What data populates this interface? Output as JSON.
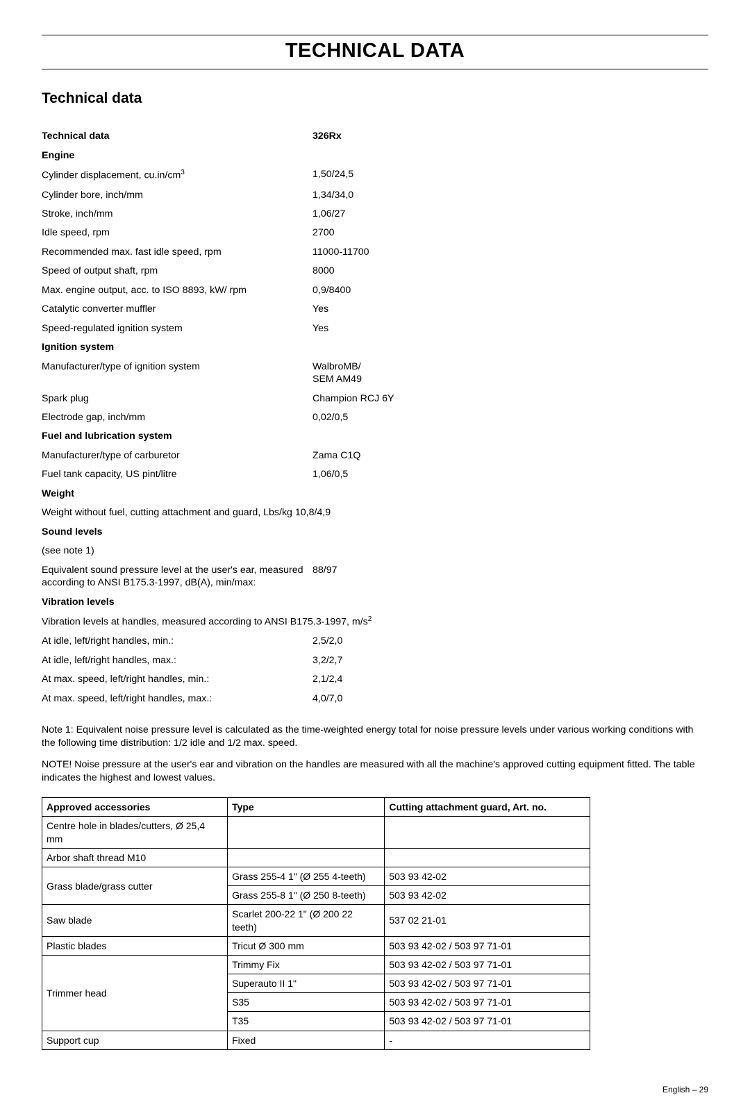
{
  "mainTitle": "TECHNICAL DATA",
  "subTitle": "Technical data",
  "modelHeader": "326Rx",
  "techDataLabel": "Technical data",
  "sections": {
    "engine": {
      "title": "Engine",
      "rows": [
        {
          "key": "cyl_disp",
          "label": "Cylinder displacement, cu.in/cm",
          "sup": "3",
          "value": "1,50/24,5"
        },
        {
          "key": "cyl_bore",
          "label": "Cylinder bore, inch/mm",
          "value": "1,34/34,0"
        },
        {
          "key": "stroke",
          "label": "Stroke, inch/mm",
          "value": "1,06/27"
        },
        {
          "key": "idle",
          "label": "Idle speed, rpm",
          "value": "2700"
        },
        {
          "key": "max_idle",
          "label": "Recommended max. fast idle speed, rpm",
          "value": "11000-11700"
        },
        {
          "key": "output_shaft",
          "label": "Speed of output shaft, rpm",
          "value": "8000"
        },
        {
          "key": "max_engine",
          "label": "Max. engine output, acc. to ISO 8893, kW/ rpm",
          "value": "0,9/8400"
        },
        {
          "key": "cat_muffler",
          "label": "Catalytic converter muffler",
          "value": "Yes"
        },
        {
          "key": "speed_ign",
          "label": "Speed-regulated ignition system",
          "value": "Yes"
        }
      ]
    },
    "ignition": {
      "title": "Ignition system",
      "rows": [
        {
          "key": "ign_type",
          "label": "Manufacturer/type of ignition system",
          "value": "WalbroMB/\nSEM AM49"
        },
        {
          "key": "spark",
          "label": "Spark plug",
          "value": "Champion RCJ 6Y"
        },
        {
          "key": "electrode",
          "label": "Electrode gap, inch/mm",
          "value": "0,02/0,5"
        }
      ]
    },
    "fuel": {
      "title": "Fuel and lubrication system",
      "rows": [
        {
          "key": "carb",
          "label": "Manufacturer/type of carburetor",
          "value": "Zama C1Q"
        },
        {
          "key": "tank",
          "label": "Fuel tank capacity, US pint/litre",
          "value": "1,06/0,5"
        }
      ]
    },
    "weight": {
      "title": "Weight",
      "rows": [
        {
          "key": "weight_no_fuel",
          "label": "Weight without fuel, cutting attachment and guard, Lbs/kg",
          "value": "10,8/4,9",
          "inline": true
        }
      ]
    },
    "sound": {
      "title": "Sound levels",
      "rows": [
        {
          "key": "note1ref",
          "label": "(see note 1)",
          "value": ""
        },
        {
          "key": "eq_sound",
          "label": "Equivalent sound pressure level at the user's ear, measured according to ANSI  B175.3-1997, dB(A), min/max:",
          "value": "88/97",
          "inline": true,
          "multiline": true
        }
      ]
    },
    "vibration": {
      "title": "Vibration levels",
      "rows": [
        {
          "key": "vib_label",
          "label": "Vibration levels at handles, measured according to ANSI B175.3-1997, m/s",
          "sup": "2",
          "value": "",
          "multiline": true
        },
        {
          "key": "idle_min",
          "label": "At idle, left/right handles, min.:",
          "value": "2,5/2,0"
        },
        {
          "key": "idle_max",
          "label": "At idle, left/right handles, max.:",
          "value": "3,2/2,7"
        },
        {
          "key": "max_min",
          "label": "At max. speed, left/right handles, min.:",
          "value": "2,1/2,4"
        },
        {
          "key": "max_max",
          "label": "At max. speed, left/right handles, max.:",
          "value": "4,0/7,0"
        }
      ]
    }
  },
  "note1": "Note 1: Equivalent noise pressure level is calculated as the time-weighted energy total for noise pressure levels under various working conditions with the following time distribution: 1/2 idle and 1/2 max. speed.",
  "note2": "NOTE! Noise pressure at the user's ear and vibration on the handles are measured with all the machine's approved cutting equipment fitted. The table indicates the highest and lowest values.",
  "accessoriesTable": {
    "headers": [
      "Approved accessories",
      "Type",
      "Cutting attachment guard, Art. no."
    ],
    "rows": [
      {
        "accessory": "Centre hole in blades/cutters, Ø 25,4 mm",
        "type": "",
        "guard": "",
        "rowspan": 1
      },
      {
        "accessory": "Arbor shaft thread M10",
        "type": "",
        "guard": "",
        "rowspan": 1
      },
      {
        "accessory": "Grass blade/grass cutter",
        "types": [
          {
            "type": "Grass 255-4 1\" (Ø 255 4-teeth)",
            "guard": "503 93 42-02"
          },
          {
            "type": "Grass 255-8 1\" (Ø 250 8-teeth)",
            "guard": "503 93 42-02"
          }
        ]
      },
      {
        "accessory": "Saw blade",
        "type": "Scarlet 200-22 1\" (Ø 200 22 teeth)",
        "guard": "537 02 21-01",
        "rowspan": 1
      },
      {
        "accessory": "Plastic blades",
        "type": "Tricut Ø 300 mm",
        "guard": "503 93 42-02 /  503 97 71-01",
        "rowspan": 1
      },
      {
        "accessory": "Trimmer head",
        "types": [
          {
            "type": "Trimmy Fix",
            "guard": "503 93 42-02 /  503 97 71-01"
          },
          {
            "type": "Superauto II 1\"",
            "guard": "503 93 42-02 /  503 97 71-01"
          },
          {
            "type": "S35",
            "guard": "503 93 42-02 /  503 97 71-01"
          },
          {
            "type": "T35",
            "guard": "503 93 42-02 /  503 97 71-01"
          }
        ]
      },
      {
        "accessory": "Support cup",
        "type": "Fixed",
        "guard": "-",
        "rowspan": 1
      }
    ]
  },
  "footer": {
    "lang": "English",
    "sep": " – ",
    "page": "29"
  }
}
